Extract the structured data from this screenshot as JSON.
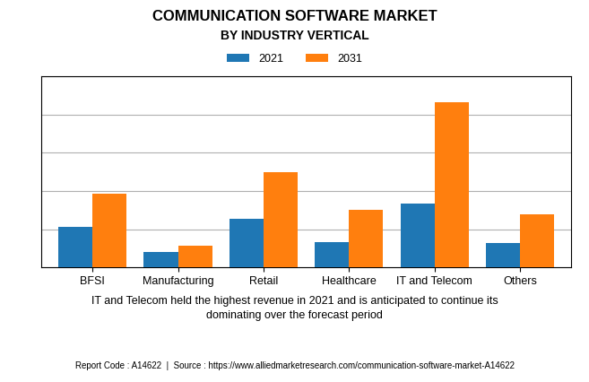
{
  "chart_data": {
    "type": "bar",
    "title": "COMMUNICATION SOFTWARE MARKET",
    "subtitle": "BY INDUSTRY VERTICAL",
    "categories": [
      "BFSI",
      "Manufacturing",
      "Retail",
      "Healthcare",
      "IT and Telecom",
      "Others"
    ],
    "series": [
      {
        "name": "2021",
        "values": [
          3.2,
          1.2,
          3.8,
          2.0,
          5.0,
          1.9
        ]
      },
      {
        "name": "2031",
        "values": [
          5.8,
          1.7,
          7.5,
          4.5,
          13.0,
          4.2
        ]
      }
    ],
    "ylim": [
      0,
      15
    ],
    "yticks": [
      0,
      3,
      6,
      9,
      12,
      15
    ],
    "grid": true,
    "legend": "upper center",
    "tick_labels": "x",
    "annotations": [
      "IT and Telecom held the highest revenue in 2021 and is anticipated to continue its\ndominating over the forecast period",
      "Report Code : A14622  |  Source : https://www.alliedmarketresearch.com/communication-software-market-A14622"
    ]
  }
}
